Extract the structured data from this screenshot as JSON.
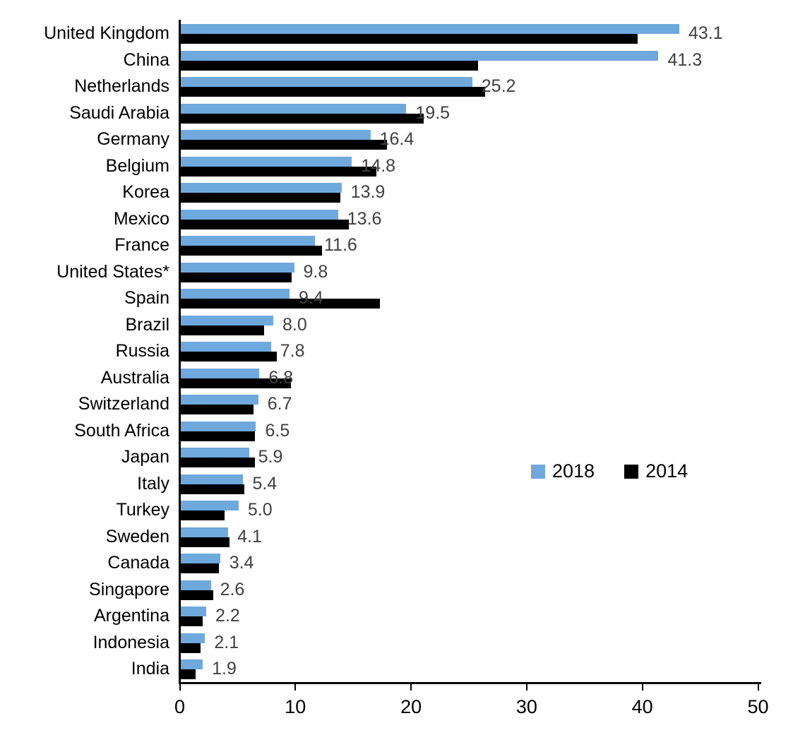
{
  "chart_data": {
    "type": "bar",
    "orientation": "horizontal",
    "title": "",
    "xlabel": "",
    "ylabel": "",
    "xlim": [
      0,
      50
    ],
    "x_ticks": [
      0,
      10,
      20,
      30,
      40,
      50
    ],
    "grid": false,
    "legend_position": "middle-right",
    "categories": [
      "United Kingdom",
      "China",
      "Netherlands",
      "Saudi Arabia",
      "Germany",
      "Belgium",
      "Korea",
      "Mexico",
      "France",
      "United States*",
      "Spain",
      "Brazil",
      "Russia",
      "Australia",
      "Switzerland",
      "South Africa",
      "Japan",
      "Italy",
      "Turkey",
      "Sweden",
      "Canada",
      "Singapore",
      "Argentina",
      "Indonesia",
      "India"
    ],
    "series": [
      {
        "name": "2018",
        "color": "#6FA8DC",
        "values": [
          43.1,
          41.3,
          25.2,
          19.5,
          16.4,
          14.8,
          13.9,
          13.6,
          11.6,
          9.8,
          9.4,
          8.0,
          7.8,
          6.8,
          6.7,
          6.5,
          5.9,
          5.4,
          5.0,
          4.1,
          3.4,
          2.6,
          2.2,
          2.1,
          1.9
        ]
      },
      {
        "name": "2014",
        "color": "#000000",
        "values": [
          39.5,
          25.7,
          26.3,
          21.0,
          17.8,
          16.9,
          13.8,
          14.5,
          12.2,
          9.6,
          17.2,
          7.2,
          8.3,
          9.5,
          6.3,
          6.4,
          6.4,
          5.5,
          3.8,
          4.2,
          3.3,
          2.8,
          1.9,
          1.7,
          1.3
        ]
      }
    ],
    "value_labels": [
      "43.1",
      "41.3",
      "25.2",
      "19.5",
      "16.4",
      "14.8",
      "13.9",
      "13.6",
      "11.6",
      "9.8",
      "9.4",
      "8.0",
      "7.8",
      "6.8",
      "6.7",
      "6.5",
      "5.9",
      "5.4",
      "5.0",
      "4.1",
      "3.4",
      "2.6",
      "2.2",
      "2.1",
      "1.9"
    ],
    "value_labels_series": "2018"
  }
}
